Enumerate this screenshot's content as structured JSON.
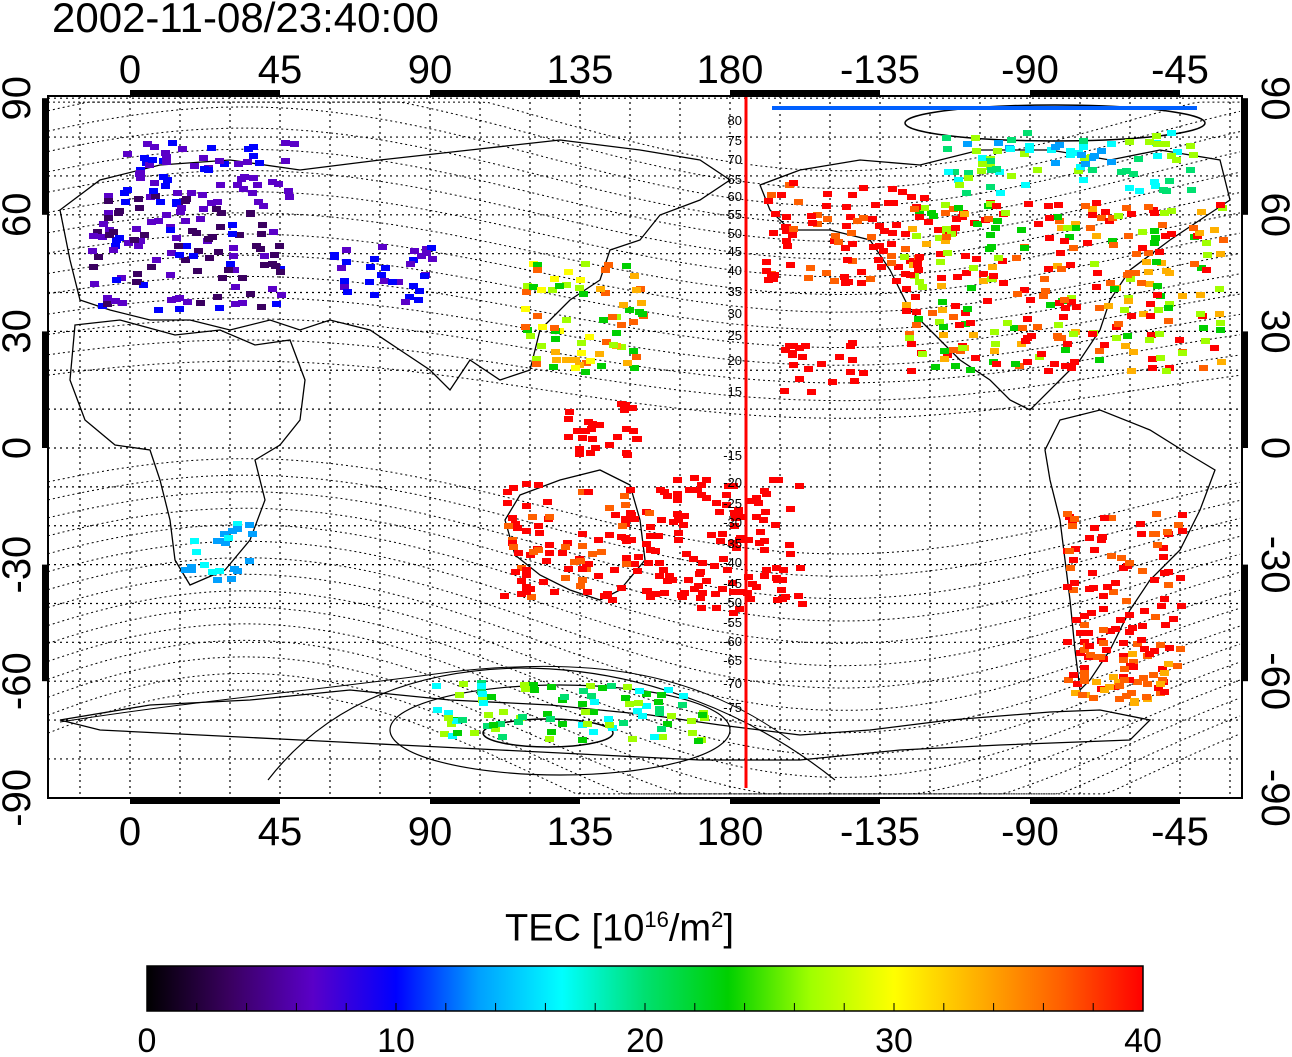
{
  "title": "2002-11-08/23:40:00",
  "map": {
    "lon_ticks_top": [
      "0",
      "45",
      "90",
      "135",
      "180",
      "-135",
      "-90",
      "-45"
    ],
    "lon_ticks_bottom": [
      "0",
      "45",
      "90",
      "135",
      "180",
      "-135",
      "-90",
      "-45"
    ],
    "lat_ticks_left": [
      "90",
      "60",
      "30",
      "0",
      "-30",
      "-60",
      "-90"
    ],
    "lat_ticks_right": [
      "90",
      "60",
      "30",
      "0",
      "-30",
      "-60",
      "-90"
    ],
    "iso_labels": [
      "80",
      "75",
      "70",
      "65",
      "60",
      "55",
      "50",
      "45",
      "40",
      "35",
      "30",
      "25",
      "20",
      "15",
      "-15",
      "-20",
      "-25",
      "-30",
      "-35",
      "-40",
      "-45",
      "-50",
      "-55",
      "-60",
      "-65",
      "-70",
      "-75"
    ],
    "red_line_color": "#ff0000"
  },
  "colorbar": {
    "title_main": "TEC  [10",
    "title_exp": "16",
    "title_unit": "/m",
    "title_exp2": "2",
    "title_end": "]",
    "tick_labels": [
      "0",
      "10",
      "20",
      "30",
      "40"
    ],
    "colors": [
      "#000000",
      "#3a0060",
      "#5a00c8",
      "#0000ff",
      "#00a0ff",
      "#00ffff",
      "#00e070",
      "#00d000",
      "#a0ff00",
      "#ffff00",
      "#ffb000",
      "#ff6000",
      "#ff0000"
    ]
  }
}
